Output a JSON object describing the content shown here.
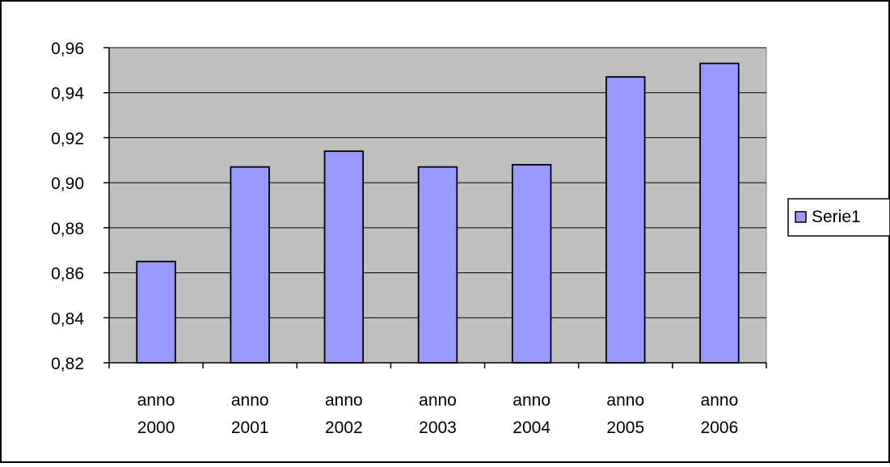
{
  "chart_data": {
    "type": "bar",
    "categories": [
      [
        "anno",
        "2000"
      ],
      [
        "anno",
        "2001"
      ],
      [
        "anno",
        "2002"
      ],
      [
        "anno",
        "2003"
      ],
      [
        "anno",
        "2004"
      ],
      [
        "anno",
        "2005"
      ],
      [
        "anno",
        "2006"
      ]
    ],
    "series": [
      {
        "name": "Serie1",
        "values": [
          0.865,
          0.907,
          0.914,
          0.907,
          0.908,
          0.947,
          0.953
        ]
      }
    ],
    "ylim": [
      0.82,
      0.96
    ],
    "yticks": [
      "0,82",
      "0,84",
      "0,86",
      "0,88",
      "0,90",
      "0,92",
      "0,94",
      "0,96"
    ],
    "grid": true,
    "legend_position": "right",
    "colors": {
      "plot_background": "#c0c0c0",
      "bar_fill": "#9999ff",
      "bar_stroke": "#000000",
      "gridline": "#000000"
    }
  }
}
